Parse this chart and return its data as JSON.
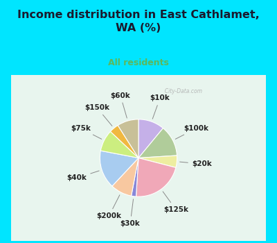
{
  "title": "Income distribution in East Cathlamet,\nWA (%)",
  "subtitle": "All residents",
  "title_color": "#1a1a2e",
  "subtitle_color": "#5cb85c",
  "background_color": "#00e5ff",
  "chart_bg_color": "#e8f5ee",
  "labels": [
    "$10k",
    "$100k",
    "$20k",
    "$125k",
    "$30k",
    "$200k",
    "$40k",
    "$75k",
    "$150k",
    "$60k"
  ],
  "values": [
    11,
    13,
    5,
    22,
    2,
    9,
    16,
    9,
    4,
    9
  ],
  "colors": [
    "#c5b0e8",
    "#b0cc9a",
    "#eeeea0",
    "#f0a8b8",
    "#8888d8",
    "#f8c8a0",
    "#a8ccf0",
    "#ccee80",
    "#f0b840",
    "#c8c098"
  ],
  "label_fontsize": 7.5,
  "title_fontsize": 11.5,
  "subtitle_fontsize": 9,
  "watermark": "  City-Data.com"
}
